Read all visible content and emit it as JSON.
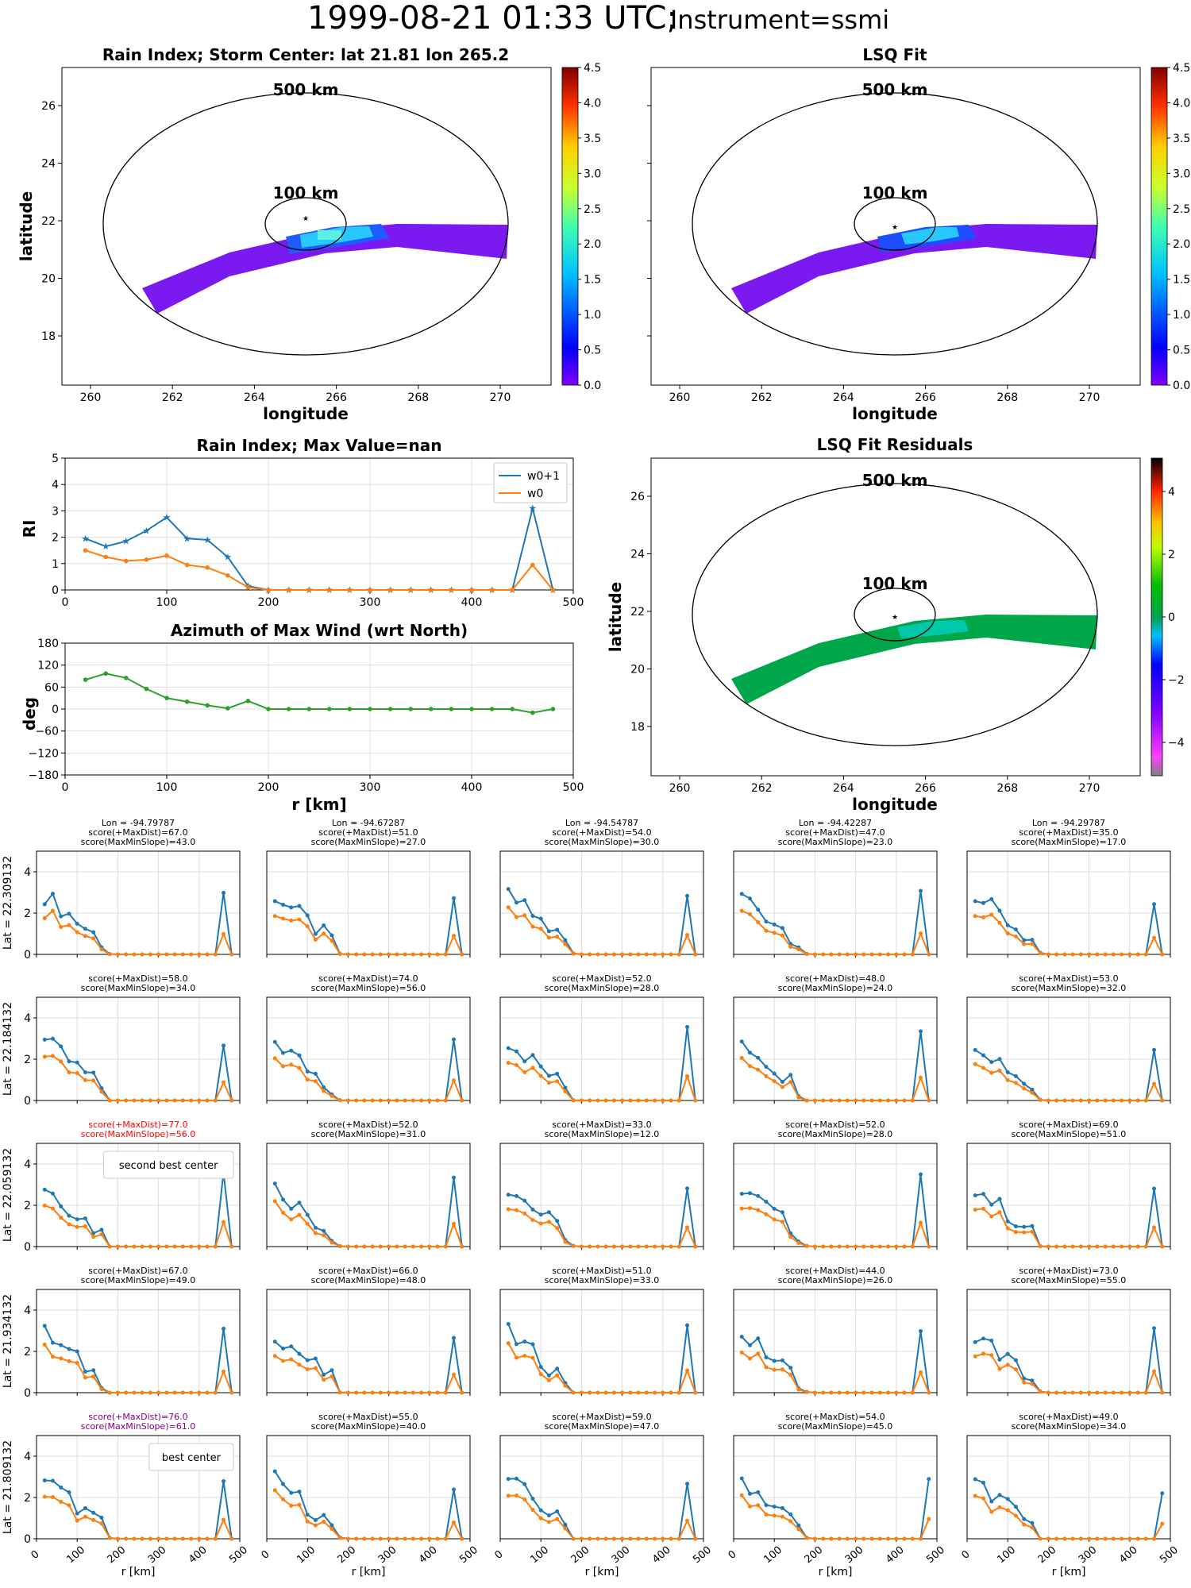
{
  "page": {
    "title_main": "1999-08-21 01:33 UTC;",
    "title_instrument": "Instrument=ssmi"
  },
  "colors": {
    "w0p1": "#1f77b4",
    "w0": "#ff7f0e",
    "azimuth": "#2ca02c",
    "best_center_score": "#800080",
    "second_best_score": "#ff0000",
    "text": "#000000",
    "grid": "#dddddd"
  },
  "maps": {
    "rain_index": {
      "title": "Rain Index; Storm Center: lat 21.81 lon 265.2",
      "xlabel": "longitude",
      "ylabel": "latitude",
      "xticks": [
        "260",
        "262",
        "264",
        "266",
        "268",
        "270"
      ],
      "yticks": [
        "18",
        "20",
        "22",
        "24",
        "26"
      ],
      "ring_labels": [
        "500 km",
        "100 km"
      ],
      "colorbar_ticks": [
        "0.0",
        "0.5",
        "1.0",
        "1.5",
        "2.0",
        "2.5",
        "3.0",
        "3.5",
        "4.0",
        "4.5"
      ],
      "colormap": "jet",
      "storm_center": {
        "lat": 21.81,
        "lon": 265.2
      }
    },
    "lsq_fit": {
      "title": "LSQ Fit",
      "xlabel": "longitude",
      "xticks": [
        "260",
        "262",
        "264",
        "266",
        "268",
        "270"
      ],
      "ring_labels": [
        "500 km",
        "100 km"
      ],
      "colorbar_ticks": [
        "0.0",
        "0.5",
        "1.0",
        "1.5",
        "2.0",
        "2.5",
        "3.0",
        "3.5",
        "4.0",
        "4.5"
      ],
      "colormap": "jet"
    },
    "residuals": {
      "title": "LSQ Fit Residuals",
      "xlabel": "longitude",
      "ylabel": "latitude",
      "xticks": [
        "260",
        "262",
        "264",
        "266",
        "268",
        "270"
      ],
      "yticks": [
        "18",
        "20",
        "22",
        "24",
        "26"
      ],
      "ring_labels": [
        "500 km",
        "100 km"
      ],
      "colorbar_ticks": [
        "4",
        "2",
        "0",
        "−2",
        "−4"
      ],
      "colormap": "diverging"
    }
  },
  "chart_data": [
    {
      "type": "line",
      "title": "Rain Index; Max Value=nan",
      "xlabel": "",
      "ylabel": "RI",
      "xlim": [
        0,
        500
      ],
      "ylim": [
        0,
        5
      ],
      "grid": true,
      "legend_position": "top-right",
      "x": [
        20,
        40,
        60,
        80,
        100,
        120,
        140,
        160,
        180,
        200,
        220,
        240,
        260,
        280,
        300,
        320,
        340,
        360,
        380,
        400,
        420,
        440,
        460,
        480
      ],
      "series": [
        {
          "name": "w0+1",
          "marker": "star",
          "values": [
            1.95,
            1.65,
            1.85,
            2.25,
            2.75,
            1.95,
            1.9,
            1.25,
            0.15,
            0.0,
            0,
            0,
            0,
            0,
            0,
            0,
            0,
            0,
            0,
            0,
            0,
            0,
            3.1,
            0.0
          ]
        },
        {
          "name": "w0",
          "marker": "dot",
          "values": [
            1.5,
            1.25,
            1.1,
            1.15,
            1.3,
            0.95,
            0.85,
            0.55,
            0.1,
            0.0,
            0,
            0,
            0,
            0,
            0,
            0,
            0,
            0,
            0,
            0,
            0,
            0,
            0.95,
            0.0
          ]
        }
      ]
    },
    {
      "type": "line",
      "title": "Azimuth of Max Wind (wrt North)",
      "xlabel": "r [km]",
      "ylabel": "deg",
      "xlim": [
        0,
        500
      ],
      "ylim": [
        -180,
        180
      ],
      "yticks": [
        "180",
        "120",
        "60",
        "0",
        "−60",
        "−120",
        "−180"
      ],
      "grid": true,
      "x": [
        20,
        40,
        60,
        80,
        100,
        120,
        140,
        160,
        180,
        200,
        220,
        240,
        260,
        280,
        300,
        320,
        340,
        360,
        380,
        400,
        420,
        440,
        460,
        480
      ],
      "series": [
        {
          "values": [
            80,
            97,
            85,
            55,
            30,
            20,
            10,
            2,
            22,
            0,
            0,
            0,
            0,
            0,
            0,
            0,
            0,
            0,
            0,
            0,
            0,
            0,
            -10,
            0
          ]
        }
      ]
    }
  ],
  "grid": {
    "xlabel": "r [km]",
    "xticks": [
      "0",
      "100",
      "200",
      "300",
      "400",
      "500"
    ],
    "yticks": [
      "0",
      "2",
      "4"
    ],
    "xlim": [
      0,
      500
    ],
    "ylim": [
      0,
      5
    ],
    "columns": [
      {
        "lon": "Lon = -94.79787"
      },
      {
        "lon": "Lon = -94.67287"
      },
      {
        "lon": "Lon = -94.54787"
      },
      {
        "lon": "Lon = -94.42287"
      },
      {
        "lon": "Lon = -94.29787"
      }
    ],
    "rows": [
      {
        "lat_label": "Lat = 22.309132",
        "cells": [
          {
            "s1": "score(+MaxDist)=67.0",
            "s2": "score(MaxMinSlope)=43.0"
          },
          {
            "s1": "score(+MaxDist)=51.0",
            "s2": "score(MaxMinSlope)=27.0"
          },
          {
            "s1": "score(+MaxDist)=54.0",
            "s2": "score(MaxMinSlope)=30.0"
          },
          {
            "s1": "score(+MaxDist)=47.0",
            "s2": "score(MaxMinSlope)=23.0"
          },
          {
            "s1": "score(+MaxDist)=35.0",
            "s2": "score(MaxMinSlope)=17.0"
          }
        ]
      },
      {
        "lat_label": "Lat = 22.184132",
        "cells": [
          {
            "s1": "score(+MaxDist)=58.0",
            "s2": "score(MaxMinSlope)=34.0"
          },
          {
            "s1": "score(+MaxDist)=74.0",
            "s2": "score(MaxMinSlope)=56.0"
          },
          {
            "s1": "score(+MaxDist)=52.0",
            "s2": "score(MaxMinSlope)=28.0"
          },
          {
            "s1": "score(+MaxDist)=48.0",
            "s2": "score(MaxMinSlope)=24.0"
          },
          {
            "s1": "score(+MaxDist)=53.0",
            "s2": "score(MaxMinSlope)=32.0"
          }
        ]
      },
      {
        "lat_label": "Lat = 22.059132",
        "cells": [
          {
            "s1": "score(+MaxDist)=77.0",
            "s2": "score(MaxMinSlope)=56.0",
            "color": "#ff0000",
            "legend": "second best center"
          },
          {
            "s1": "score(+MaxDist)=52.0",
            "s2": "score(MaxMinSlope)=31.0"
          },
          {
            "s1": "score(+MaxDist)=33.0",
            "s2": "score(MaxMinSlope)=12.0"
          },
          {
            "s1": "score(+MaxDist)=52.0",
            "s2": "score(MaxMinSlope)=28.0"
          },
          {
            "s1": "score(+MaxDist)=69.0",
            "s2": "score(MaxMinSlope)=51.0"
          }
        ]
      },
      {
        "lat_label": "Lat = 21.934132",
        "cells": [
          {
            "s1": "score(+MaxDist)=67.0",
            "s2": "score(MaxMinSlope)=49.0"
          },
          {
            "s1": "score(+MaxDist)=66.0",
            "s2": "score(MaxMinSlope)=48.0"
          },
          {
            "s1": "score(+MaxDist)=51.0",
            "s2": "score(MaxMinSlope)=33.0"
          },
          {
            "s1": "score(+MaxDist)=44.0",
            "s2": "score(MaxMinSlope)=26.0"
          },
          {
            "s1": "score(+MaxDist)=73.0",
            "s2": "score(MaxMinSlope)=55.0"
          }
        ]
      },
      {
        "lat_label": "Lat = 21.809132",
        "cells": [
          {
            "s1": "score(+MaxDist)=76.0",
            "s2": "score(MaxMinSlope)=61.0",
            "color": "#800080",
            "legend": "best center"
          },
          {
            "s1": "score(+MaxDist)=55.0",
            "s2": "score(MaxMinSlope)=40.0"
          },
          {
            "s1": "score(+MaxDist)=59.0",
            "s2": "score(MaxMinSlope)=47.0"
          },
          {
            "s1": "score(+MaxDist)=54.0",
            "s2": "score(MaxMinSlope)=45.0"
          },
          {
            "s1": "score(+MaxDist)=49.0",
            "s2": "score(MaxMinSlope)=34.0"
          }
        ]
      }
    ]
  }
}
